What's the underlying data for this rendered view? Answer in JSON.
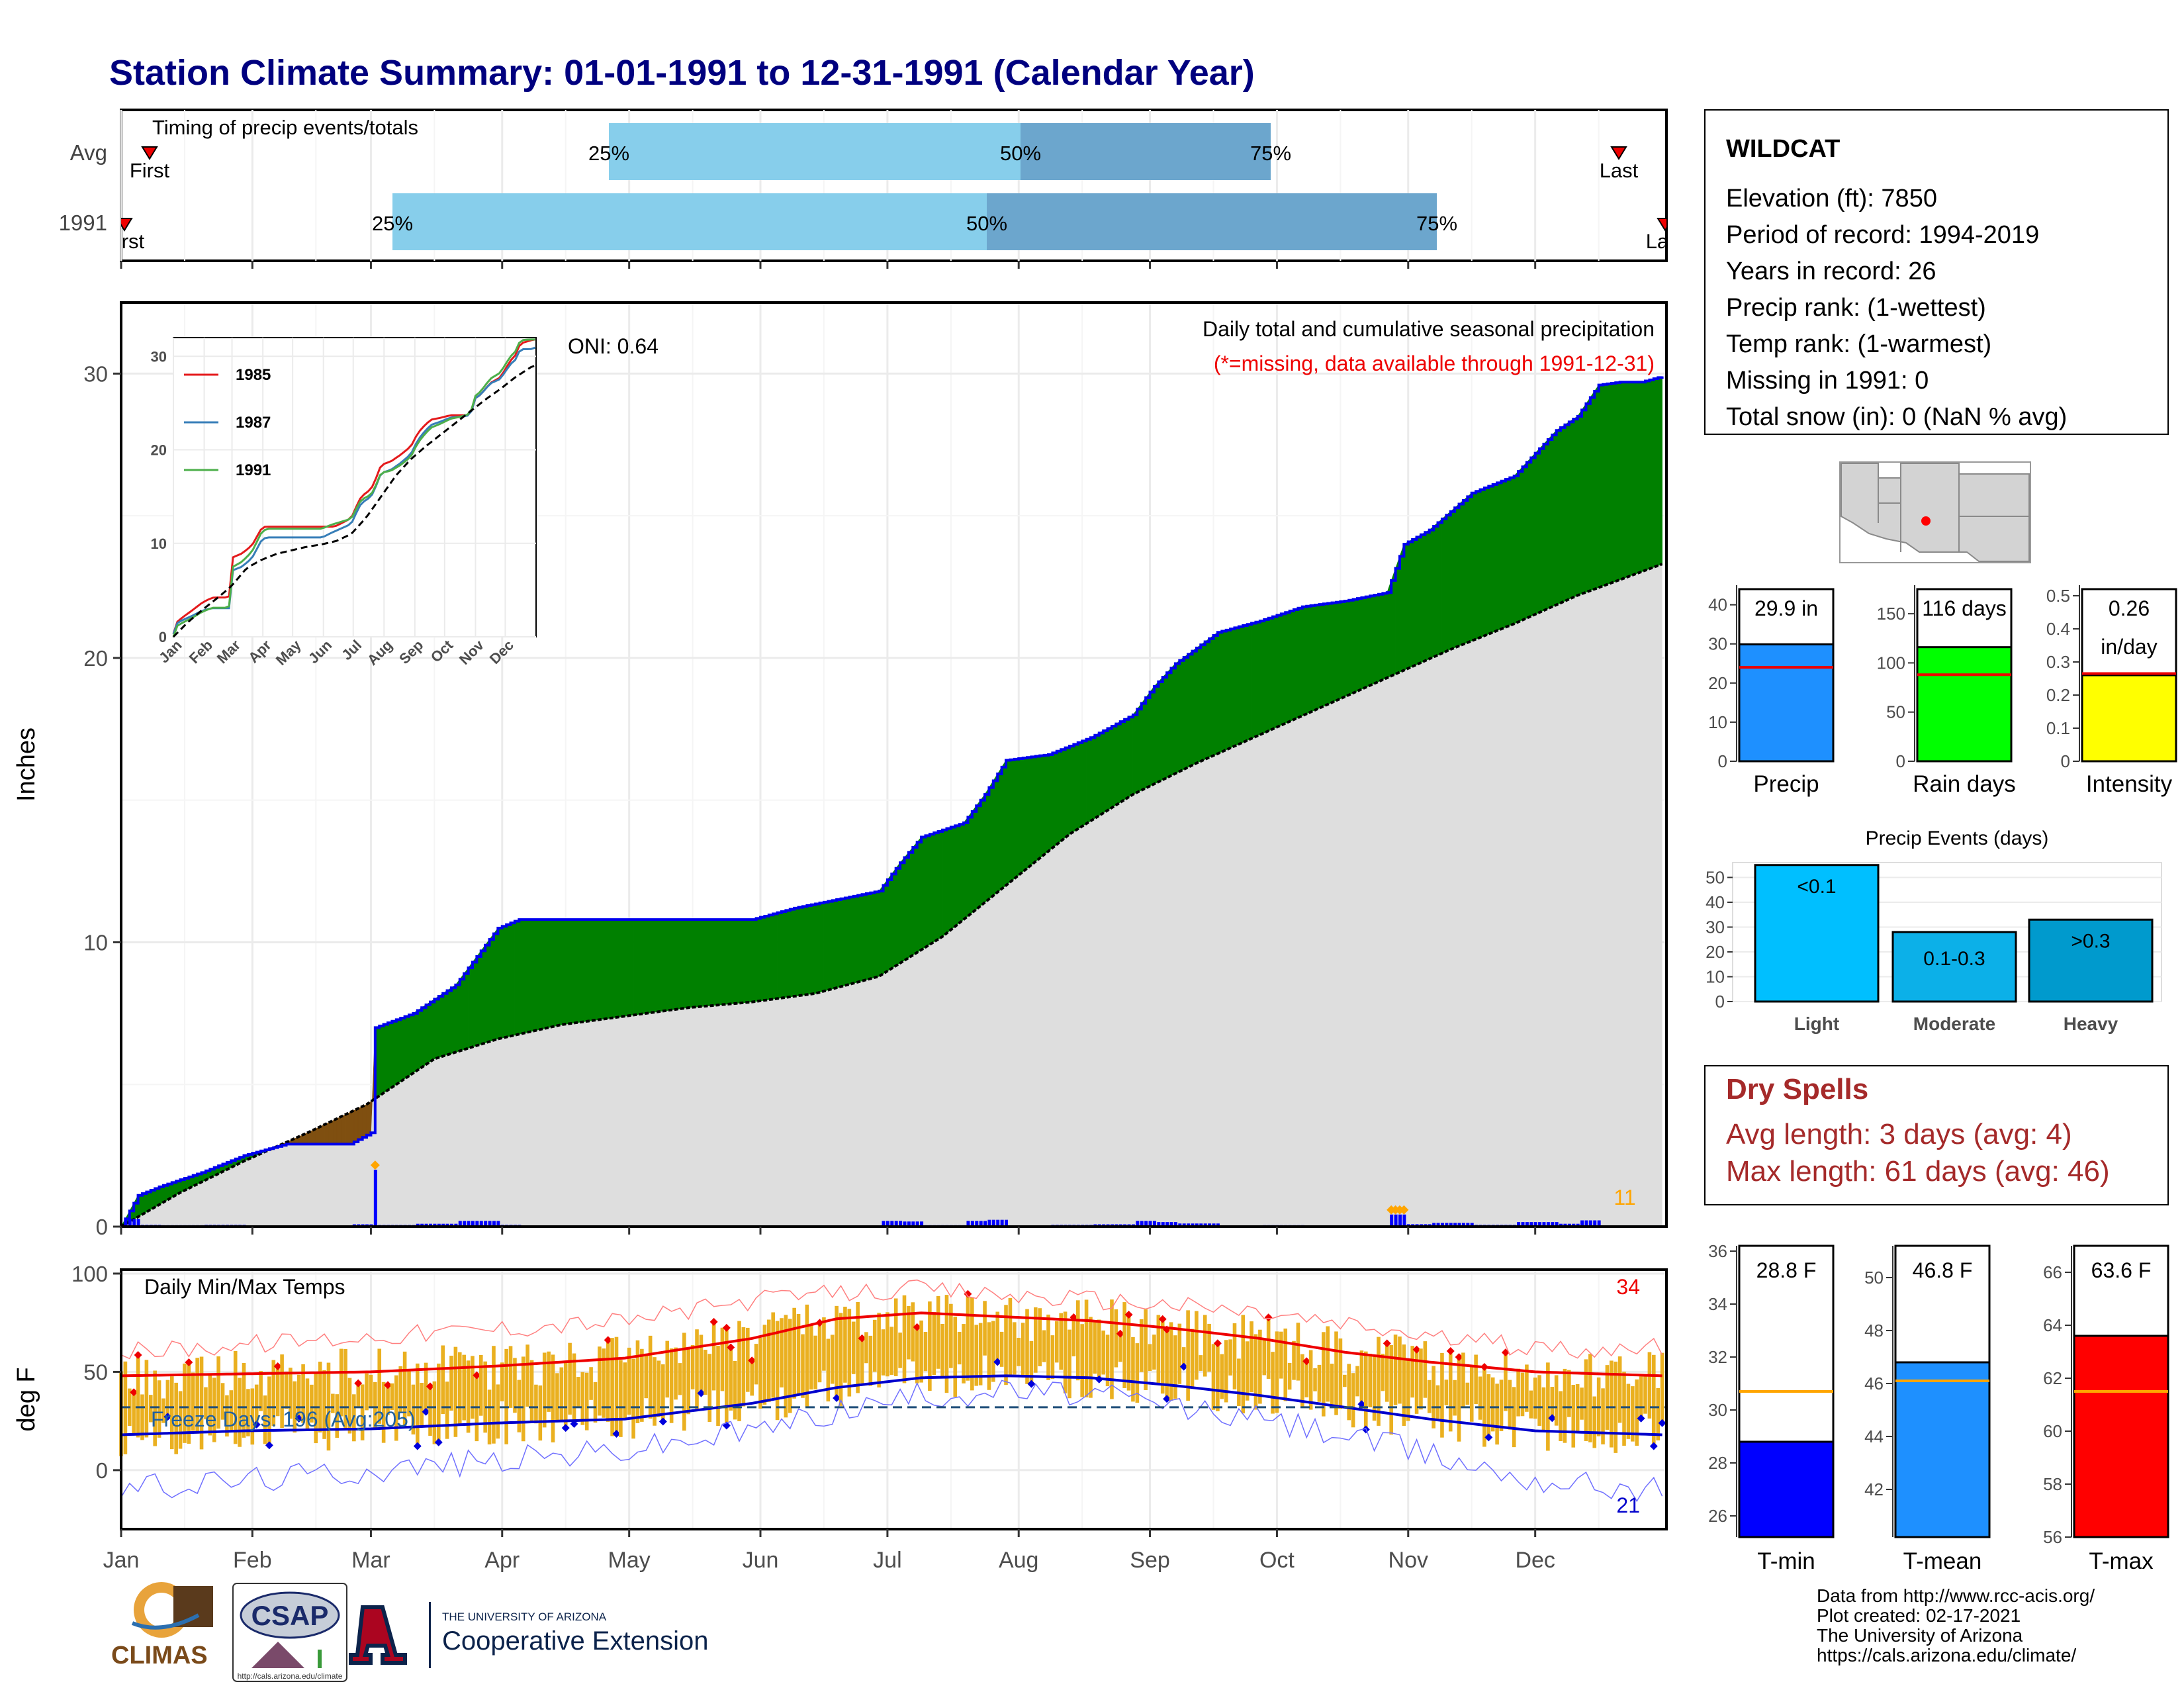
{
  "title": "Station Climate Summary: 01-01-1991 to 12-31-1991 (Calendar Year)",
  "colors": {
    "title": "#00007F",
    "precip_excess": "#008000",
    "precip_deficit": "#7F4F10",
    "precip_line": "#0000EE",
    "avg_fill": "#DEDEDE",
    "q1": "#87CEEB",
    "q2": "#6CA6CD",
    "temp_bar": "#EAB020",
    "tmax_line": "#EE0000",
    "tmin_line": "#0000CC",
    "dry_spell": "#A52A2A"
  },
  "months": [
    "Jan",
    "Feb",
    "Mar",
    "Apr",
    "May",
    "Jun",
    "Jul",
    "Aug",
    "Sep",
    "Oct",
    "Nov",
    "Dec"
  ],
  "timing": {
    "label": "Timing of precip events/totals",
    "rows": [
      "Avg",
      "1991"
    ],
    "avg": {
      "first": "First",
      "last": "Last",
      "q25": "25%",
      "q50": "50%",
      "q75": "75%"
    },
    "year": {
      "first": "First",
      "last": "Last",
      "q25": "25%",
      "q50": "50%",
      "q75": "75%"
    }
  },
  "precip_panel": {
    "ylabel": "Inches",
    "oni": "ONI: 0.64",
    "subtitle": "Daily total and cumulative seasonal precipitation",
    "missing_note": "(*=missing, data available through 1991-12-31)",
    "heavy_count": "11"
  },
  "temp_panel": {
    "ylabel": "deg F",
    "title": "Daily Min/Max Temps",
    "freeze_label": "Freeze Days: 196 (Avg:205)",
    "hot_count": "34",
    "cold_count": "21"
  },
  "station": {
    "name": "WILDCAT",
    "elevation": "Elevation (ft): 7850",
    "period": "Period of record: 1994-2019",
    "years": "Years in record: 26",
    "precip_rank": "Precip rank:  (1-wettest)",
    "temp_rank": "Temp rank:  (1-warmest)",
    "missing": "Missing in 1991: 0",
    "snow": "Total snow (in): 0 (NaN % avg)"
  },
  "stat_bars": [
    {
      "name": "Precip",
      "label": "29.9 in",
      "label2": "",
      "value": 29.9,
      "avg": 24,
      "ymax": 44,
      "ticks": [
        0,
        10,
        20,
        30,
        40
      ],
      "color": "#1E90FF"
    },
    {
      "name": "Rain days",
      "label": "116 days",
      "label2": "",
      "value": 116,
      "avg": 88,
      "ymax": 175,
      "ticks": [
        0,
        50,
        100,
        150
      ],
      "color": "#00FF00"
    },
    {
      "name": "Intensity",
      "label": "0.26",
      "label2": "in/day",
      "value": 0.26,
      "avg": 0.265,
      "ymax": 0.52,
      "ticks": [
        0.0,
        0.1,
        0.2,
        0.3,
        0.4,
        0.5
      ],
      "color": "#FFFF00"
    }
  ],
  "events": {
    "title": "Precip Events (days)",
    "ymax": 56,
    "ticks": [
      0,
      10,
      20,
      30,
      40,
      50
    ],
    "bars": [
      {
        "name": "Light",
        "label": "<0.1",
        "value": 55,
        "color": "#00BFFF"
      },
      {
        "name": "Moderate",
        "label": "0.1-0.3",
        "value": 28,
        "color": "#0CB0E8"
      },
      {
        "name": "Heavy",
        "label": ">0.3",
        "value": 33,
        "color": "#009ACD"
      }
    ]
  },
  "dry_spells": {
    "title": "Dry Spells",
    "avg": "Avg length: 3 days (avg: 4)",
    "max": "Max length: 61 days (avg: 46)"
  },
  "temp_bars": [
    {
      "name": "T-min",
      "label": "28.8 F",
      "value": 28.8,
      "avg": 30.7,
      "ymin": 25.2,
      "ymax": 36.2,
      "ticks": [
        26,
        28,
        30,
        32,
        34,
        36
      ],
      "color": "#0000FF"
    },
    {
      "name": "T-mean",
      "label": "46.8 F",
      "value": 46.8,
      "avg": 46.1,
      "ymin": 40.2,
      "ymax": 51.2,
      "ticks": [
        42,
        44,
        46,
        48,
        50
      ],
      "color": "#1E90FF"
    },
    {
      "name": "T-max",
      "label": "63.6 F",
      "value": 63.6,
      "avg": 61.5,
      "ymin": 56,
      "ymax": 67,
      "ticks": [
        56,
        58,
        60,
        62,
        64,
        66
      ],
      "color": "#FF0000"
    }
  ],
  "inset": {
    "years": [
      "1985",
      "1987",
      "1991"
    ],
    "colors": [
      "#E41A1C",
      "#377EB8",
      "#4DAF4A"
    ],
    "ticks": [
      0,
      10,
      20,
      30
    ]
  },
  "logos": {
    "climas": "CLIMAS",
    "csap": "CSAP",
    "csap_url": "http://cals.arizona.edu/climate",
    "ua_small": "THE UNIVERSITY OF ARIZONA",
    "coop": "Cooperative Extension"
  },
  "credits": [
    "Data from http://www.rcc-acis.org/",
    "Plot created: 02-17-2021",
    "The University of Arizona",
    "https://cals.arizona.edu/climate/"
  ],
  "chart_data": [
    {
      "type": "area",
      "title": "Daily total and cumulative seasonal precipitation",
      "ylabel": "Inches",
      "xlabel": "",
      "ylim": [
        0,
        32.5
      ],
      "x_unit": "day of year",
      "series": [
        {
          "name": "1991",
          "x": [
            1,
            5,
            10,
            20,
            30,
            40,
            45,
            55,
            60,
            61,
            70,
            80,
            90,
            95,
            100,
            110,
            120,
            130,
            140,
            150,
            155,
            160,
            170,
            180,
            185,
            190,
            200,
            205,
            210,
            220,
            230,
            240,
            245,
            250,
            260,
            270,
            280,
            290,
            300,
            304,
            310,
            320,
            330,
            340,
            345,
            350,
            355,
            360,
            365
          ],
          "values": [
            0,
            1.1,
            1.4,
            1.9,
            2.5,
            2.9,
            2.9,
            2.9,
            3.3,
            7.0,
            7.5,
            8.5,
            10.5,
            10.8,
            10.8,
            10.8,
            10.8,
            10.8,
            10.8,
            10.8,
            11.0,
            11.2,
            11.5,
            11.8,
            12.8,
            13.7,
            14.2,
            15.2,
            16.4,
            16.6,
            17.2,
            18.0,
            19.0,
            19.8,
            20.9,
            21.3,
            21.8,
            22.0,
            22.3,
            24.0,
            24.5,
            25.8,
            26.4,
            28.0,
            28.5,
            29.6,
            29.7,
            29.7,
            29.9
          ]
        },
        {
          "name": "Average",
          "x": [
            1,
            15,
            30,
            45,
            59,
            75,
            90,
            105,
            120,
            135,
            150,
            165,
            180,
            195,
            210,
            225,
            240,
            255,
            270,
            285,
            300,
            315,
            330,
            345,
            365
          ],
          "values": [
            0,
            1.2,
            2.3,
            3.3,
            4.3,
            5.9,
            6.6,
            7.1,
            7.4,
            7.7,
            7.9,
            8.2,
            8.8,
            10.2,
            12.0,
            13.8,
            15.2,
            16.3,
            17.3,
            18.3,
            19.3,
            20.3,
            21.2,
            22.2,
            23.3
          ]
        }
      ]
    },
    {
      "type": "line",
      "title": "Daily Min/Max Temps",
      "ylabel": "deg F",
      "xlabel": "",
      "ylim": [
        -30,
        102
      ],
      "x_unit": "day of year",
      "freeze_line": 32,
      "series": [
        {
          "name": "Avg Tmax",
          "x": [
            1,
            30,
            60,
            90,
            120,
            150,
            170,
            190,
            210,
            230,
            250,
            270,
            290,
            310,
            335,
            365
          ],
          "values": [
            48,
            49,
            50,
            53,
            57,
            67,
            77,
            80,
            78,
            76,
            72,
            67,
            60,
            55,
            50,
            48
          ]
        },
        {
          "name": "Avg Tmin",
          "x": [
            1,
            30,
            60,
            90,
            120,
            150,
            170,
            190,
            210,
            230,
            250,
            270,
            290,
            310,
            335,
            365
          ],
          "values": [
            18,
            20,
            21,
            24,
            26,
            34,
            42,
            47,
            48,
            47,
            43,
            38,
            32,
            26,
            20,
            18
          ]
        },
        {
          "name": "Record Tmax",
          "x": [
            1,
            30,
            60,
            90,
            120,
            150,
            170,
            190,
            210,
            230,
            250,
            270,
            290,
            310,
            335,
            365
          ],
          "values": [
            60,
            64,
            68,
            72,
            76,
            86,
            90,
            92,
            89,
            87,
            84,
            80,
            74,
            68,
            62,
            62
          ]
        },
        {
          "name": "Record Tmin",
          "x": [
            1,
            30,
            60,
            90,
            120,
            150,
            170,
            190,
            210,
            230,
            250,
            270,
            290,
            310,
            335,
            365
          ],
          "values": [
            -10,
            -5,
            0,
            5,
            10,
            20,
            30,
            38,
            40,
            38,
            32,
            26,
            18,
            8,
            -5,
            -10
          ]
        }
      ]
    },
    {
      "type": "bar",
      "title": "Precip Events (days)",
      "categories": [
        "Light",
        "Moderate",
        "Heavy"
      ],
      "values": [
        55,
        28,
        33
      ],
      "ylim": [
        0,
        56
      ]
    }
  ]
}
